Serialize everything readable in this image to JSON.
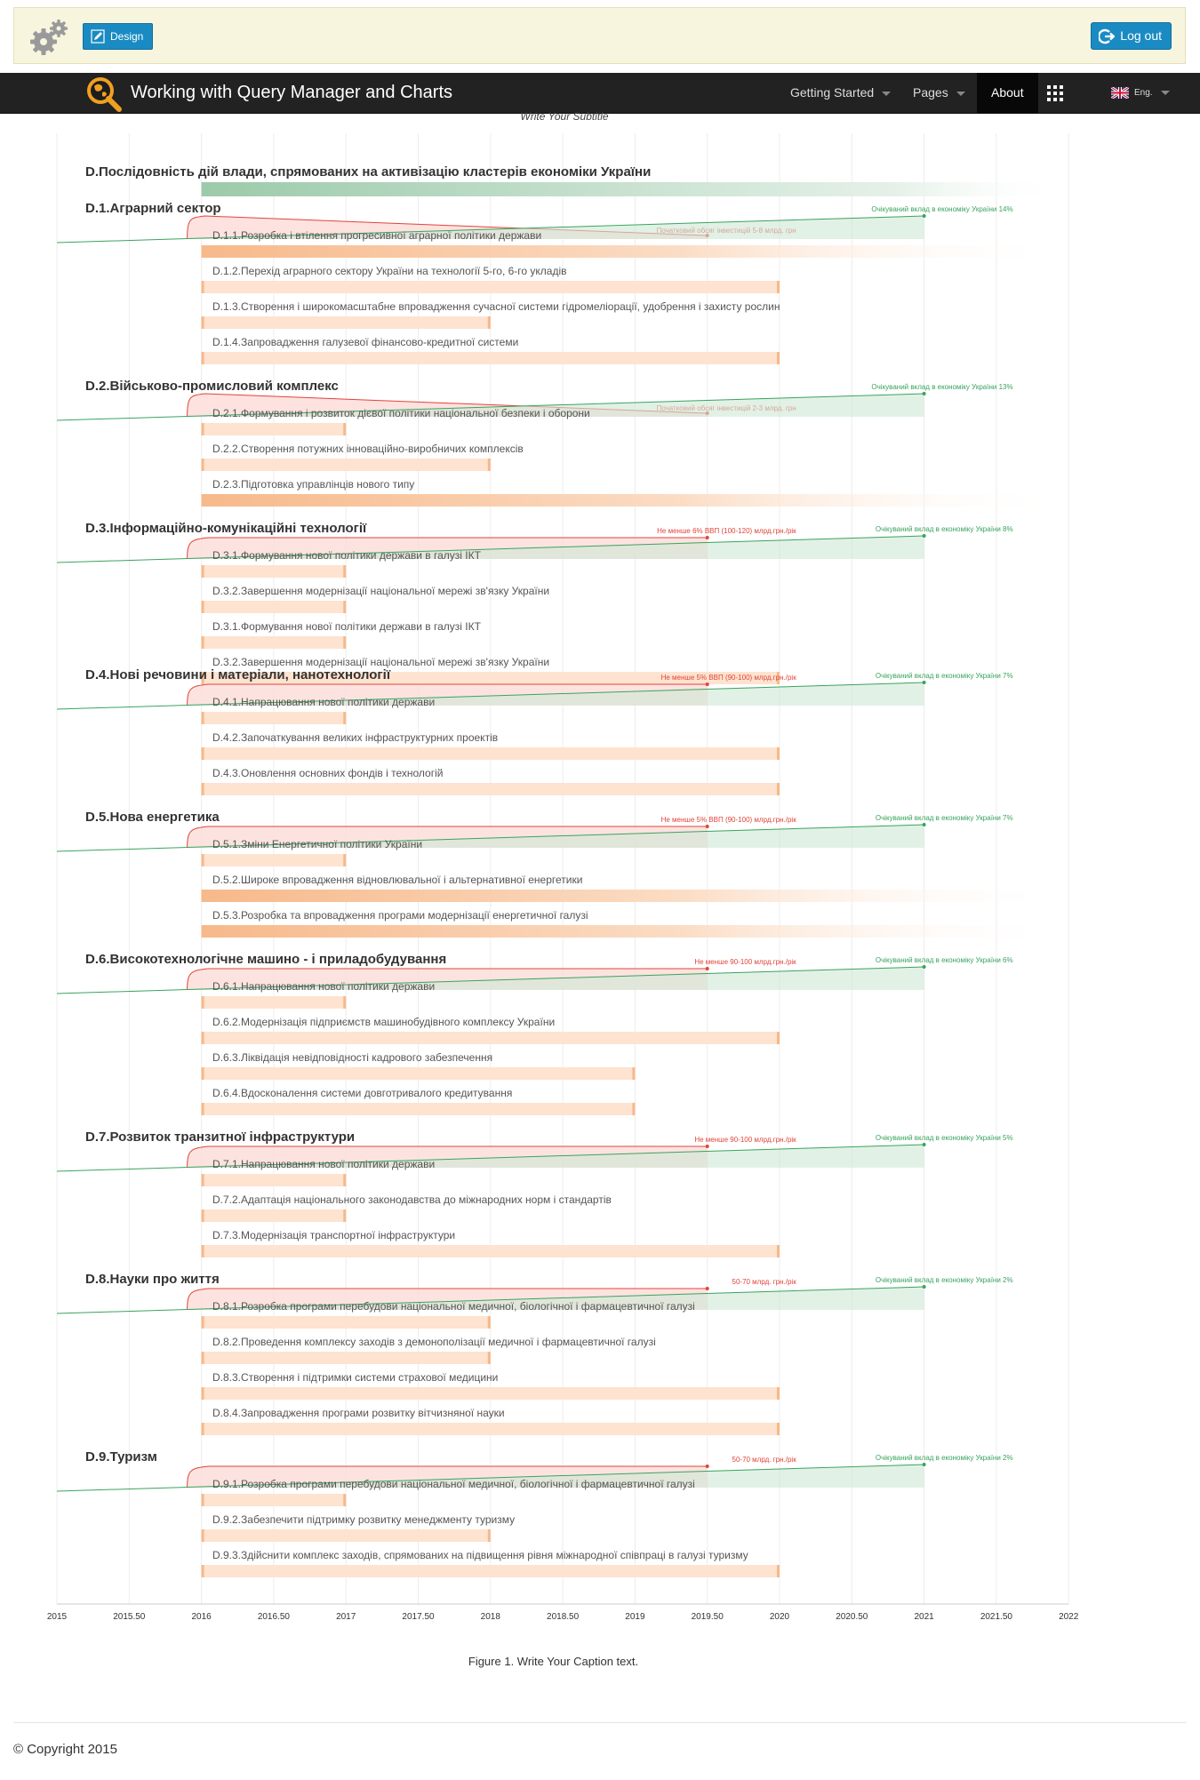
{
  "header": {
    "design_label": "Design",
    "logout_label": "Log out"
  },
  "nav": {
    "title": "Working with Query Manager and Charts",
    "items": [
      "Getting Started",
      "Pages",
      "About"
    ],
    "lang": "Eng."
  },
  "subtitle": "Write Your Subtitle",
  "caption": "Figure 1. Write Your Caption text.",
  "copyright": "© Copyright 2015",
  "colors": {
    "green": "#3aa35e",
    "red": "#e0443a",
    "orange": "#f7b98a"
  },
  "chart_data": {
    "type": "gantt",
    "title": "D.Послідовність дій влади, спрямованих на активізацію кластерів економіки України",
    "xlim": [
      2015,
      2022
    ],
    "x_ticks": [
      "2015",
      "2015.50",
      "2016",
      "2016.50",
      "2017",
      "2017.50",
      "2018",
      "2018.50",
      "2019",
      "2019.50",
      "2020",
      "2020.50",
      "2021",
      "2021.50",
      "2022"
    ],
    "sections": [
      {
        "title": "D.1.Аграрний сектор",
        "invest_label": "Початковий обсяг інвестицій 5-8 млрд. грн",
        "invest_style": "sweep",
        "invest_end": 2019.5,
        "effect_label": "Очікуваний вклад в економіку України 14%",
        "effect_end": 2021,
        "tasks": [
          {
            "label": "D.1.1.Розробка і втілення прогресивної аграрної політики держави",
            "start": 2016,
            "end": null
          },
          {
            "label": "D.1.2.Перехід аграрного сектору України на технології 5-го, 6-го укладів",
            "start": 2016,
            "end": 2020
          },
          {
            "label": "D.1.3.Створення і широкомасштабне впровадження сучасної системи гідромеліорації, удобрення і захисту рослин",
            "start": 2016,
            "end": 2018
          },
          {
            "label": "D.1.4.Запровадження галузевої фінансово-кредитної системи",
            "start": 2016,
            "end": 2020
          }
        ]
      },
      {
        "title": "D.2.Військово-промисловий комплекс",
        "invest_label": "Початковий обсяг інвестицій 2-3 млрд. грн",
        "invest_style": "sweep",
        "invest_end": 2019.5,
        "effect_label": "Очікуваний вклад в економіку України 13%",
        "effect_end": 2021,
        "tasks": [
          {
            "label": "D.2.1.Формування і розвиток дієвої політики національної безпеки і оборони",
            "start": 2016,
            "end": 2017
          },
          {
            "label": "D.2.2.Створення потужних інноваційно-виробничих комплексів",
            "start": 2016,
            "end": 2018
          },
          {
            "label": "D.2.3.Підготовка управлінців нового типу",
            "start": 2016,
            "end": null
          }
        ]
      },
      {
        "title": "D.3.Інформаційно-комунікаційні технології",
        "invest_label": "Не менше 6% ВВП (100-120) млрд.грн./рік",
        "invest_style": "band",
        "invest_end": 2019.5,
        "effect_label": "Очікуваний вклад в економіку України 8%",
        "effect_end": 2021,
        "tasks": [
          {
            "label": "D.3.1.Формування нової політики держави в галузі ІКТ",
            "start": 2016,
            "end": 2017
          },
          {
            "label": "D.3.2.Завершення модернізації національної мережі зв'язку України",
            "start": 2016,
            "end": 2017
          },
          {
            "label": "D.3.1.Формування нової політики держави в галузі ІКТ",
            "start": 2016,
            "end": 2017
          },
          {
            "label": "D.3.2.Завершення модернізації національної мережі зв'язку України",
            "start": 2016,
            "end": 2020
          }
        ]
      },
      {
        "title": "D.4.Нові речовини і матеріали, нанотехнології",
        "invest_label": "Не менше 5% ВВП (90-100) млрд.грн./рік",
        "invest_style": "band",
        "invest_end": 2019.5,
        "effect_label": "Очікуваний вклад в економіку України 7%",
        "effect_end": 2021,
        "tasks": [
          {
            "label": "D.4.1.Напрацювання нової політики держави",
            "start": 2016,
            "end": 2017
          },
          {
            "label": "D.4.2.Започаткування великих інфраструктурних проектів",
            "start": 2016,
            "end": 2020
          },
          {
            "label": "D.4.3.Оновлення основних фондів і технологій",
            "start": 2016,
            "end": 2020
          }
        ]
      },
      {
        "title": "D.5.Нова енергетика",
        "invest_label": "Не менше 5% ВВП (90-100) млрд.грн./рік",
        "invest_style": "band",
        "invest_end": 2019.5,
        "effect_label": "Очікуваний вклад в економіку України 7%",
        "effect_end": 2021,
        "tasks": [
          {
            "label": "D.5.1.Зміни Енергетичної політики України",
            "start": 2016,
            "end": 2017
          },
          {
            "label": "D.5.2.Широке впровадження відновлювальної і альтернативної енергетики",
            "start": 2016,
            "end": null
          },
          {
            "label": "D.5.3.Розробка та впровадження програми модернізації енергетичної галузі",
            "start": 2016,
            "end": null
          }
        ]
      },
      {
        "title": "D.6.Високотехнологічне машино - і приладобудування",
        "invest_label": "Не менше 90-100 млрд.грн./рік",
        "invest_style": "band",
        "invest_end": 2019.5,
        "effect_label": "Очікуваний вклад в економіку України 6%",
        "effect_end": 2021,
        "tasks": [
          {
            "label": "D.6.1.Напрацювання нової політики держави",
            "start": 2016,
            "end": 2017
          },
          {
            "label": "D.6.2.Модернізація підприємств машинобудівного комплексу України",
            "start": 2016,
            "end": 2020
          },
          {
            "label": "D.6.3.Ліквідація невідповідності кадрового забезпечення",
            "start": 2016,
            "end": 2019
          },
          {
            "label": "D.6.4.Вдосконалення системи довготривалого кредитування",
            "start": 2016,
            "end": 2019
          }
        ]
      },
      {
        "title": "D.7.Розвиток транзитної інфраструктури",
        "invest_label": "Не менше 90-100 млрд.грн./рік",
        "invest_style": "band",
        "invest_end": 2019.5,
        "effect_label": "Очікуваний вклад в економіку України 5%",
        "effect_end": 2021,
        "tasks": [
          {
            "label": "D.7.1.Напрацювання нової політики держави",
            "start": 2016,
            "end": 2017
          },
          {
            "label": "D.7.2.Адаптація національного законодавства до міжнародних норм і стандартів",
            "start": 2016,
            "end": 2017
          },
          {
            "label": "D.7.3.Модернізація транспортної інфраструктури",
            "start": 2016,
            "end": 2020
          }
        ]
      },
      {
        "title": "D.8.Науки про життя",
        "invest_label": "50-70 млрд. грн./рік",
        "invest_style": "band",
        "invest_end": 2019.5,
        "effect_label": "Очікуваний вклад в економіку України 2%",
        "effect_end": 2021,
        "tasks": [
          {
            "label": "D.8.1.Розробка програми перебудови національної медичної, біологічної і фармацевтичної галузі",
            "start": 2016,
            "end": 2018
          },
          {
            "label": "D.8.2.Проведення комплексу заходів з демонополізації медичної і фармацевтичної галузі",
            "start": 2016,
            "end": 2018
          },
          {
            "label": "D.8.3.Створення і підтримки системи страхової медицини",
            "start": 2016,
            "end": 2020
          },
          {
            "label": "D.8.4.Запровадження програми розвитку вітчизняної науки",
            "start": 2016,
            "end": 2020
          }
        ]
      },
      {
        "title": "D.9.Туризм",
        "invest_label": "50-70 млрд. грн./рік",
        "invest_style": "band",
        "invest_end": 2019.5,
        "effect_label": "Очікуваний вклад в економіку України 2%",
        "effect_end": 2021,
        "tasks": [
          {
            "label": "D.9.1.Розробка програми перебудови національної медичної, біологічної і фармацевтичної галузі",
            "start": 2016,
            "end": 2017
          },
          {
            "label": "D.9.2.Забезпечити підтримку розвитку менеджменту туризму",
            "start": 2016,
            "end": 2018
          },
          {
            "label": "D.9.3.Здійснити комплекс заходів, спрямованих на підвищення рівня міжнародної співпраці в галузі туризму",
            "start": 2016,
            "end": 2020
          }
        ]
      }
    ]
  }
}
